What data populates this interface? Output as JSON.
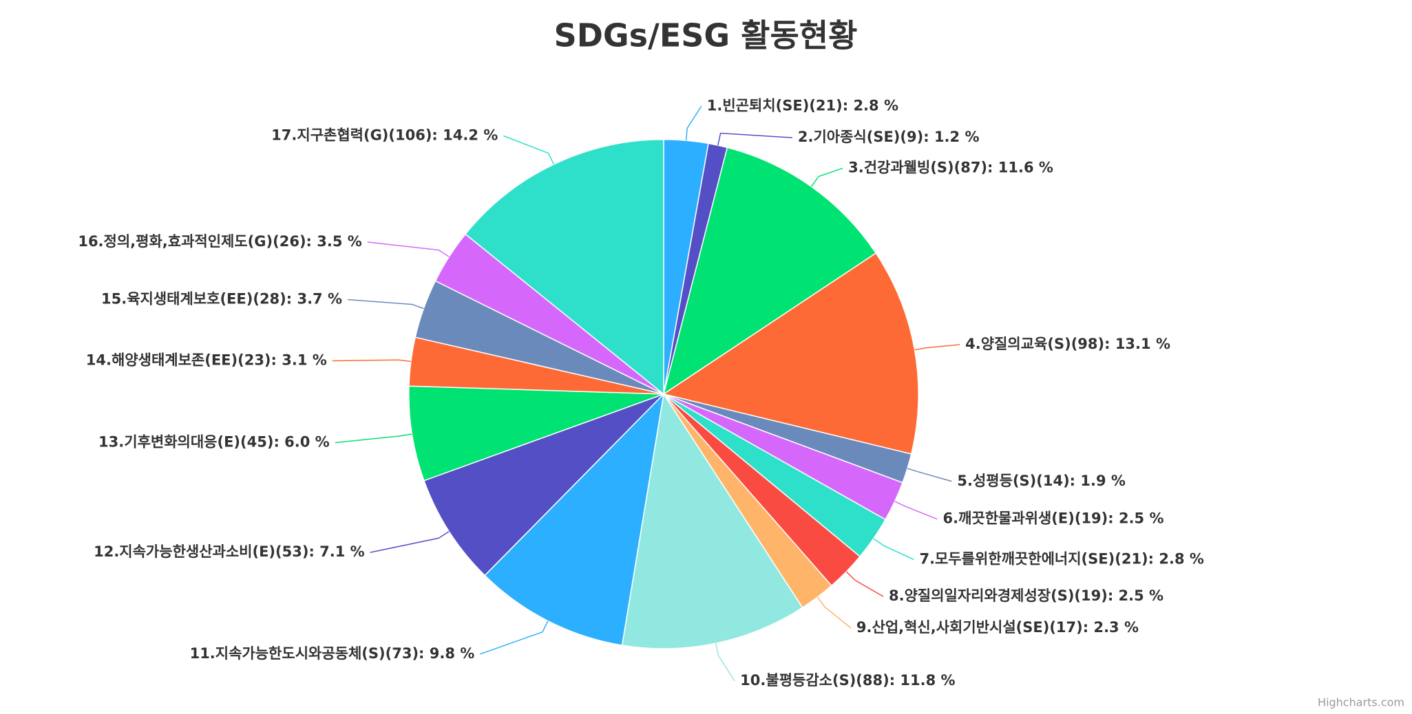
{
  "chart_data": {
    "type": "pie",
    "title": "SDGs/ESG 활동현황",
    "credits": "Highcharts.com",
    "categories": [
      "1.빈곤퇴치(SE)",
      "2.기아종식(SE)",
      "3.건강과웰빙(S)",
      "4.양질의교육(S)",
      "5.성평등(S)",
      "6.깨끗한물과위생(E)",
      "7.모두를위한깨끗한에너지(SE)",
      "8.양질의일자리와경제성장(S)",
      "9.산업,혁신,사회기반시설(SE)",
      "10.불평등감소(S)",
      "11.지속가능한도시와공동체(S)",
      "12.지속가능한생산과소비(E)",
      "13.기후변화의대응(E)",
      "14.해양생태계보존(EE)",
      "15.육지생태계보호(EE)",
      "16.정의,평화,효과적인제도(G)",
      "17.지구촌협력(G)"
    ],
    "values": [
      21,
      9,
      87,
      98,
      14,
      19,
      21,
      19,
      17,
      88,
      73,
      53,
      45,
      23,
      28,
      26,
      106
    ],
    "value_labels": [
      "(21): 2.8 %",
      "(9): 1.2 %",
      "(87): 11.6 %",
      "(98): 13.1 %",
      "(14): 1.9 %",
      "(19): 2.5 %",
      "(21): 2.8 %",
      "(19): 2.5 %",
      "(17): 2.3 %",
      "(88): 11.8 %",
      "(73): 9.8 %",
      "(53): 7.1 %",
      "(45): 6.0 %",
      "(23): 3.1 %",
      "(28): 3.7 %",
      "(26): 3.5 %",
      "(106): 14.2 %"
    ],
    "colors": [
      "#2caffe",
      "#544fc5",
      "#00e272",
      "#fe6a35",
      "#6b8abc",
      "#d568fb",
      "#2ee0ca",
      "#fa4b42",
      "#feb56a",
      "#91e8e1",
      "#2caffe",
      "#544fc5",
      "#00e272",
      "#fe6a35",
      "#6b8abc",
      "#d568fb",
      "#2ee0ca"
    ]
  }
}
